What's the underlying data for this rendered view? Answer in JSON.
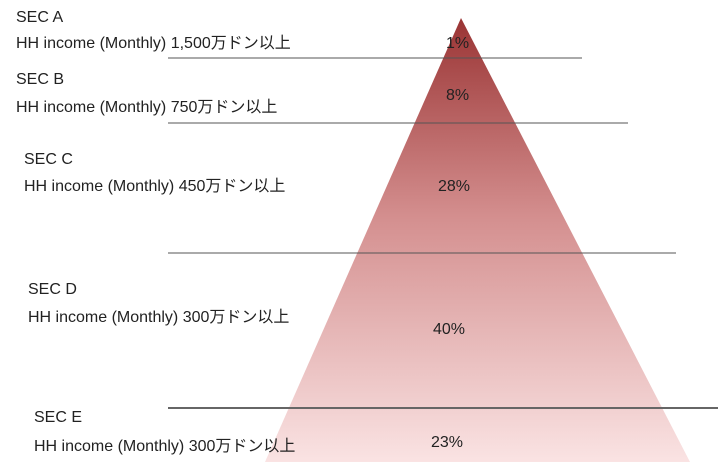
{
  "levels": [
    {
      "name": "SEC A",
      "income": "HH income (Monthly) 1,500万ドン以上",
      "share": "1%"
    },
    {
      "name": "SEC B",
      "income": "HH income (Monthly) 750万ドン以上",
      "share": "8%"
    },
    {
      "name": "SEC C",
      "income": "HH income (Monthly) 450万ドン以上",
      "share": "28%"
    },
    {
      "name": "SEC D",
      "income": "HH income (Monthly) 300万ドン以上",
      "share": "40%"
    },
    {
      "name": "SEC E",
      "income": "HH income (Monthly) 300万ドン以上",
      "share": "23%"
    }
  ]
}
